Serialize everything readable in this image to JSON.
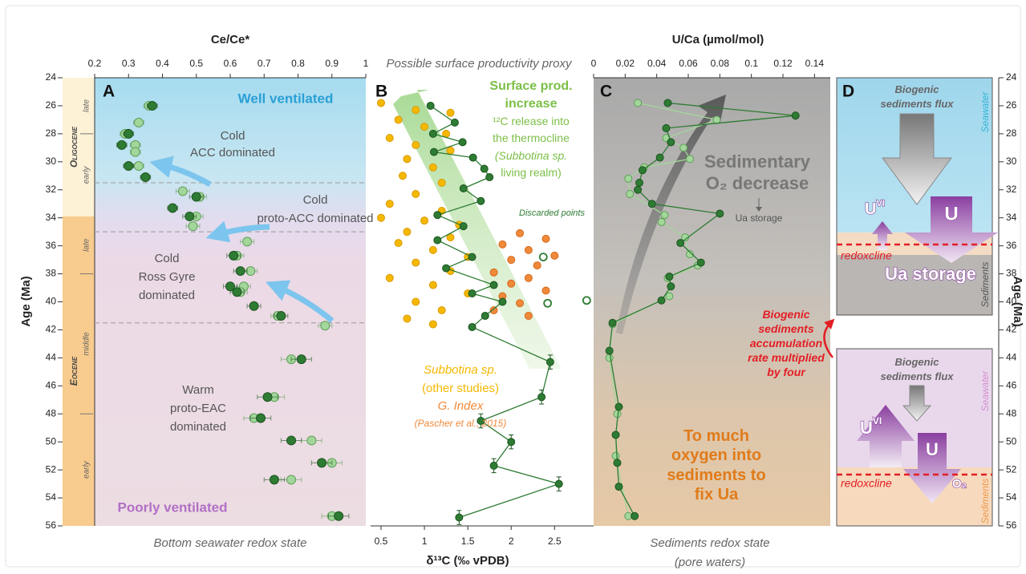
{
  "chart_data": [
    {
      "type": "scatter",
      "label": "A",
      "xlabel": "Ce/Ce*",
      "xaxis": "top",
      "xlim": [
        0.2,
        1
      ],
      "xticks": [
        0.2,
        0.3,
        0.4,
        0.5,
        0.6,
        0.7,
        0.8,
        0.9,
        1
      ],
      "ylabel": "Age (Ma)",
      "ylim": [
        56,
        24
      ],
      "yticks": [
        24,
        26,
        28,
        30,
        32,
        34,
        36,
        38,
        40,
        42,
        44,
        46,
        48,
        50,
        52,
        54,
        56
      ],
      "footer": "Bottom seawater redox state",
      "boundaries": [
        31.5,
        35,
        41.5
      ],
      "epochs": [
        {
          "label": "Oligocene",
          "from": 24,
          "to": 33.9,
          "color": "#fdf1d6",
          "stages": [
            {
              "label": "late",
              "from": 24,
              "to": 28
            },
            {
              "label": "early",
              "from": 28,
              "to": 33.9
            }
          ]
        },
        {
          "label": "Eocene",
          "from": 33.9,
          "to": 56,
          "color": "#f8cb8e",
          "stages": [
            {
              "label": "late",
              "from": 33.9,
              "to": 38
            },
            {
              "label": "middle",
              "from": 38,
              "to": 48
            },
            {
              "label": "early",
              "from": 48,
              "to": 56
            }
          ]
        }
      ],
      "texts": {
        "well": "Well ventilated",
        "acc": [
          "Cold",
          "ACC dominated"
        ],
        "proto_acc": [
          "Cold",
          "proto-ACC dominated"
        ],
        "ross": [
          "Cold",
          "Ross Gyre",
          "dominated"
        ],
        "eac": [
          "Warm",
          "proto-EAC",
          "dominated"
        ],
        "poor": "Poorly ventilated"
      },
      "series": [
        {
          "color": "#a3d69a",
          "edgecolor": "#5e9f58",
          "ages": [
            26.0,
            27.2,
            28.0,
            28.8,
            29.3,
            30.3,
            32.1,
            32.5,
            33.9,
            34.6,
            35.7,
            36.7,
            37.8,
            38.9,
            39.3,
            41.0,
            41.7,
            44.1,
            46.8,
            48.3,
            49.9,
            51.5,
            52.7,
            55.3
          ],
          "values": [
            0.36,
            0.33,
            0.29,
            0.32,
            0.32,
            0.33,
            0.46,
            0.51,
            0.5,
            0.49,
            0.65,
            0.62,
            0.66,
            0.64,
            0.63,
            0.74,
            0.88,
            0.78,
            0.73,
            0.67,
            0.84,
            0.9,
            0.78,
            0.9
          ],
          "xerr": [
            0.015,
            0.015,
            0.015,
            0.015,
            0.015,
            0.015,
            0.02,
            0.02,
            0.02,
            0.02,
            0.02,
            0.02,
            0.02,
            0.02,
            0.02,
            0.02,
            0.02,
            0.03,
            0.03,
            0.03,
            0.03,
            0.03,
            0.03,
            0.03
          ]
        },
        {
          "color": "#2e7b33",
          "edgecolor": "#1d5420",
          "ages": [
            26.0,
            28.0,
            28.8,
            30.3,
            31.1,
            32.5,
            33.3,
            33.9,
            36.7,
            37.8,
            38.9,
            39.3,
            40.3,
            41.0,
            44.1,
            46.8,
            48.3,
            49.9,
            51.5,
            52.7,
            55.3
          ],
          "values": [
            0.37,
            0.3,
            0.28,
            0.3,
            0.35,
            0.5,
            0.43,
            0.48,
            0.61,
            0.63,
            0.6,
            0.62,
            0.67,
            0.75,
            0.81,
            0.71,
            0.69,
            0.78,
            0.87,
            0.73,
            0.92
          ],
          "xerr": [
            0.015,
            0.015,
            0.015,
            0.015,
            0.015,
            0.02,
            0.015,
            0.02,
            0.02,
            0.02,
            0.02,
            0.02,
            0.02,
            0.02,
            0.03,
            0.03,
            0.03,
            0.03,
            0.03,
            0.03,
            0.03
          ]
        }
      ]
    },
    {
      "type": "line",
      "label": "B",
      "xlabel": "δ¹³C (‰ vPDB)",
      "xaxis": "bottom",
      "proxy": "Possible surface productivity proxy",
      "xlim": [
        0.38,
        2.95
      ],
      "xticks": [
        0.5,
        1,
        1.5,
        2,
        2.5
      ],
      "ylim": [
        56,
        24
      ],
      "texts": {
        "increase": [
          "Surface prod.",
          "increase"
        ],
        "release": [
          "¹²C release into",
          "the thermocline",
          "(Subbotina sp.",
          "living realm)"
        ],
        "discarded": "Discarded points",
        "subbotina": [
          "Subbotina sp.",
          "(other studies)"
        ],
        "gindex": "G. Index",
        "pascher": "(Pascher et al., 2015)"
      },
      "series": [
        {
          "color": "#f5b800",
          "edgecolor": "#d99a00",
          "connect": false,
          "ages": [
            25.8,
            26.3,
            26.5,
            27.0,
            27.5,
            28.0,
            28.3,
            28.8,
            29.2,
            29.8,
            30.4,
            31.0,
            31.5,
            32.3,
            33.0,
            33.5,
            34.0,
            34.2,
            34.5,
            35.0,
            35.4,
            35.8,
            36.3,
            36.8,
            37.2,
            37.8,
            38.3,
            38.8,
            39.4,
            40.0,
            40.6,
            41.2,
            41.6
          ],
          "values": [
            0.5,
            0.9,
            1.3,
            0.7,
            1.0,
            1.25,
            0.6,
            0.9,
            1.3,
            0.8,
            1.1,
            0.75,
            1.2,
            0.9,
            0.6,
            1.2,
            0.5,
            1.0,
            1.4,
            0.8,
            1.3,
            0.7,
            1.1,
            1.5,
            0.9,
            1.3,
            0.6,
            1.1,
            1.5,
            0.9,
            1.2,
            0.8,
            1.1
          ]
        },
        {
          "color": "#f0893a",
          "edgecolor": "#d46a1c",
          "connect": false,
          "ages": [
            35.1,
            35.5,
            35.9,
            36.3,
            36.7,
            37.0,
            37.4,
            37.9,
            38.3,
            38.7,
            39.2,
            39.6,
            40.1,
            40.6,
            41.0
          ],
          "values": [
            2.1,
            2.4,
            1.9,
            2.2,
            2.5,
            2.0,
            2.3,
            1.8,
            2.2,
            2.0,
            2.4,
            1.9,
            2.1,
            1.8,
            2.2
          ]
        },
        {
          "color": "#2e7b33",
          "edgecolor": "#1d5420",
          "ages": [
            26.0,
            27.2,
            28.0,
            28.6,
            29.3,
            29.7,
            30.5,
            31.1,
            31.9,
            32.8,
            33.8,
            34.6,
            35.6,
            36.8,
            37.6,
            38.8,
            39.4,
            40.0,
            41.0,
            41.8,
            44.3,
            46.8,
            48.5,
            50.0,
            51.7,
            53.0,
            55.4
          ],
          "values": [
            1.07,
            1.35,
            1.1,
            1.44,
            1.11,
            1.56,
            1.69,
            1.75,
            1.45,
            1.65,
            1.15,
            1.45,
            1.15,
            1.55,
            1.25,
            1.8,
            1.55,
            1.9,
            1.7,
            1.55,
            2.45,
            2.35,
            1.65,
            2.0,
            1.8,
            2.55,
            1.4
          ],
          "yerr": [
            null,
            null,
            null,
            null,
            null,
            null,
            null,
            null,
            null,
            null,
            null,
            null,
            null,
            null,
            null,
            null,
            null,
            null,
            null,
            null,
            0.5,
            0.5,
            0.5,
            0.5,
            0.5,
            0.5,
            0.5
          ]
        },
        {
          "color": "#2e7b33",
          "edgecolor": "#2e7b33",
          "connect": false,
          "hollow": true,
          "ages": [
            36.8,
            39.9,
            40.1
          ],
          "values": [
            2.37,
            2.87,
            2.42
          ]
        }
      ]
    },
    {
      "type": "line",
      "label": "C",
      "xlabel": "U/Ca (µmol/mol)",
      "xaxis": "top",
      "xlim": [
        0,
        0.15
      ],
      "xticks": [
        0,
        0.02,
        0.04,
        0.06,
        0.08,
        0.1,
        0.12,
        0.14
      ],
      "ylim": [
        56,
        24
      ],
      "y2label": "Age (Ma)",
      "y2lim": [
        56,
        24
      ],
      "y2ticks": [
        24,
        26,
        28,
        30,
        32,
        34,
        36,
        38,
        40,
        42,
        44,
        46,
        48,
        50,
        52,
        54,
        56
      ],
      "footer": [
        "Sediments redox state",
        "(pore waters)"
      ],
      "texts": {
        "decrease": [
          "Sedimentary",
          "O₂ decrease"
        ],
        "storage": "Ua storage",
        "oxygen": [
          "To much",
          "oxygen into",
          "sediments to",
          "fix Ua"
        ]
      },
      "series": [
        {
          "color": "#a3d69a",
          "edgecolor": "#5e9f58",
          "ages": [
            25.8,
            27.0,
            28.3,
            29.0,
            29.8,
            30.4,
            31.2,
            32.3,
            33.8,
            34.3,
            35.4,
            36.6,
            37.4,
            38.3,
            39.6,
            41.6,
            44.0,
            48.0,
            51.0,
            55.3
          ],
          "values": [
            0.028,
            0.078,
            0.046,
            0.057,
            0.061,
            0.032,
            0.022,
            0.023,
            0.045,
            0.043,
            0.058,
            0.061,
            0.066,
            0.047,
            0.048,
            0.012,
            0.01,
            0.015,
            0.014,
            0.022
          ]
        },
        {
          "color": "#2e7b33",
          "edgecolor": "#1d5420",
          "ages": [
            25.8,
            26.7,
            27.6,
            28.6,
            29.7,
            30.6,
            31.5,
            32.0,
            33.0,
            33.7,
            35.8,
            37.2,
            38.2,
            38.9,
            39.9,
            41.5,
            43.5,
            47.5,
            49.5,
            51.5,
            53.2,
            55.3
          ],
          "values": [
            0.047,
            0.128,
            0.046,
            0.049,
            0.042,
            0.031,
            0.029,
            0.028,
            0.037,
            0.08,
            0.055,
            0.068,
            0.048,
            0.049,
            0.043,
            0.012,
            0.01,
            0.016,
            0.014,
            0.015,
            0.016,
            0.026
          ]
        }
      ]
    }
  ],
  "diagram": {
    "label": "D",
    "top_box": {
      "flux": [
        "Biogenic",
        "sediments flux"
      ],
      "seawater": "Seawater",
      "uvi": {
        "base": "U",
        "sup": "VI"
      },
      "u": "U",
      "redoxcline": "redoxcline",
      "storage": "Ua storage",
      "sediments": "Sediments"
    },
    "transition": [
      "Biogenic",
      "sediments",
      "accumulation",
      "rate multiplied",
      "by four"
    ],
    "bottom_box": {
      "flux": [
        "Biogenic",
        "sediments flux"
      ],
      "seawater": "Seawater",
      "uvi": {
        "base": "U",
        "sup": "VI"
      },
      "u": "U",
      "o2": "O₂",
      "redoxcline": "redoxcline",
      "sediments": "Sediments"
    }
  }
}
